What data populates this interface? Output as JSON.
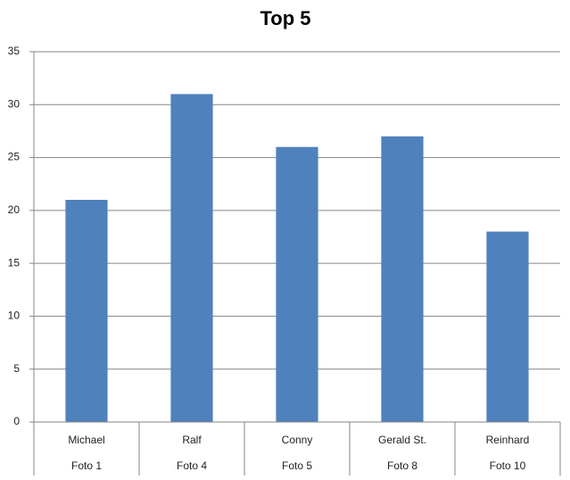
{
  "chart_data": {
    "type": "bar",
    "title": "Top 5",
    "categories": [
      [
        "Michael",
        "Foto 1"
      ],
      [
        "Ralf",
        "Foto 4"
      ],
      [
        "Conny",
        "Foto 5"
      ],
      [
        "Gerald St.",
        "Foto 8"
      ],
      [
        "Reinhard",
        "Foto 10"
      ]
    ],
    "values": [
      21,
      31,
      26,
      27,
      18
    ],
    "color": "#4f81bd",
    "ylim": [
      0,
      35
    ],
    "yticks": [
      0,
      5,
      10,
      15,
      20,
      25,
      30,
      35
    ],
    "grid": true
  }
}
